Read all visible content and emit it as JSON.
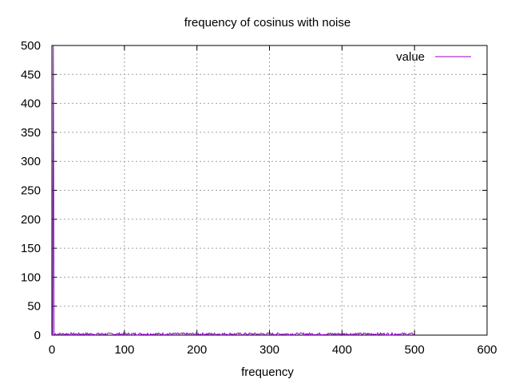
{
  "chart_data": {
    "type": "line",
    "title": "frequency of cosinus with noise",
    "xlabel": "frequency",
    "ylabel": "",
    "xlim": [
      0,
      600
    ],
    "ylim": [
      0,
      500
    ],
    "xticks": [
      0,
      100,
      200,
      300,
      400,
      500,
      600
    ],
    "yticks": [
      0,
      50,
      100,
      150,
      200,
      250,
      300,
      350,
      400,
      450,
      500
    ],
    "grid": true,
    "legend_position": "top-right",
    "series": [
      {
        "name": "value",
        "color": "#9400d3",
        "description": "spectrum: single spike near frequency 2 reaching ~500, near-zero noise floor (~0-4) up to frequency 500",
        "spike": {
          "x": 2,
          "y": 500
        },
        "noise_floor_max": 4,
        "x_end": 500
      }
    ]
  }
}
